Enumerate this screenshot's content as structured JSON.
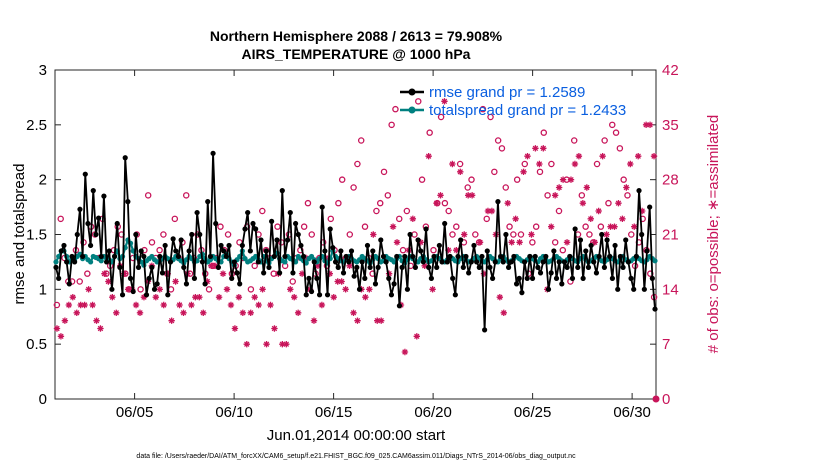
{
  "chart_data": {
    "type": "line",
    "title_line1": "Northern Hemisphere 2088 / 2613 = 79.908%",
    "title_line2": "AIRS_TEMPERATURE @ 1000 hPa",
    "ylabel_left": "rmse and totalspread",
    "ylabel_right": "# of obs: o=possible; ∗=assimilated",
    "xlabel": "Jun.01,2014 00:00:00 start",
    "footer": "data file: /Users/raeder/DAI/ATM_forcXX/CAM6_setup/f.e21.FHIST_BGC.f09_025.CAM6assim.011/Diags_NTrS_2014-06/obs_diag_output.nc",
    "xlim": [
      1,
      31.2
    ],
    "ylim_left": [
      0,
      3
    ],
    "ylim_right": [
      0,
      42
    ],
    "yticks_left": [
      "0",
      "0.5",
      "1",
      "1.5",
      "2",
      "2.5",
      "3"
    ],
    "yticks_right": [
      "0",
      "7",
      "14",
      "21",
      "28",
      "35",
      "42"
    ],
    "xticks": [
      {
        "label": "06/05",
        "day": 5
      },
      {
        "label": "06/10",
        "day": 10
      },
      {
        "label": "06/15",
        "day": 15
      },
      {
        "label": "06/20",
        "day": 20
      },
      {
        "label": "06/25",
        "day": 25
      },
      {
        "label": "06/30",
        "day": 30
      }
    ],
    "series": [
      {
        "name": "rmse grand pr = 1.2589",
        "axis": "left",
        "color": "#000000",
        "y": [
          1.2,
          1.1,
          1.35,
          1.4,
          1.25,
          1.05,
          1.3,
          1.25,
          1.5,
          1.73,
          1.3,
          2.05,
          1.6,
          1.4,
          1.9,
          1.5,
          1.65,
          1.3,
          1.85,
          1.25,
          1.35,
          1.0,
          1.3,
          1.6,
          1.2,
          0.95,
          2.2,
          1.8,
          1.1,
          0.98,
          1.5,
          1.2,
          1.35,
          1.3,
          0.95,
          1.1,
          1.2,
          1.0,
          1.05,
          1.3,
          1.15,
          1.4,
          0.95,
          1.25,
          1.46,
          1.35,
          1.3,
          1.45,
          1.2,
          1.05,
          1.35,
          1.5,
          1.1,
          1.7,
          1.5,
          1.25,
          1.05,
          1.8,
          1.3,
          2.24,
          1.6,
          1.2,
          1.4,
          1.35,
          1.3,
          1.4,
          1.1,
          1.25,
          1.15,
          1.05,
          1.4,
          1.55,
          1.7,
          1.35,
          1.6,
          1.55,
          1.25,
          1.45,
          1.15,
          1.35,
          1.2,
          1.62,
          1.3,
          1.45,
          1.15,
          1.9,
          1.3,
          1.45,
          1.7,
          1.15,
          1.6,
          1.5,
          1.4,
          1.3,
          0.95,
          1.1,
          0.98,
          1.25,
          1.1,
          0.95,
          1.75,
          1.35,
          0.95,
          1.55,
          1.38,
          1.25,
          1.2,
          1.35,
          1.15,
          1.3,
          1.25,
          1.35,
          1.12,
          1.2,
          1.0,
          1.25,
          1.1,
          1.4,
          1.2,
          1.35,
          1.05,
          1.2,
          1.45,
          1.3,
          1.25,
          1.1,
          0.95,
          1.05,
          1.3,
          0.85,
          1.2,
          1.3,
          1.0,
          1.5,
          1.3,
          1.2,
          1.45,
          1.35,
          1.25,
          1.55,
          1.2,
          1.1,
          1.3,
          1.2,
          1.4,
          1.25,
          1.6,
          1.25,
          1.3,
          1.1,
          0.95,
          1.3,
          1.45,
          1.2,
          1.3,
          1.15,
          1.25,
          1.4,
          1.25,
          1.2,
          1.3,
          0.63,
          1.35,
          1.2,
          1.1,
          1.25,
          1.8,
          1.3,
          1.25,
          1.5,
          1.2,
          1.25,
          1.3,
          1.05,
          1.1,
          0.97,
          1.25,
          1.1,
          1.3,
          1.1,
          1.3,
          1.2,
          1.15,
          1.25,
          1.3,
          1.0,
          1.15,
          1.35,
          1.1,
          1.25,
          1.05,
          1.25,
          1.2,
          1.3,
          1.1,
          1.55,
          1.2,
          1.45,
          1.1,
          1.35,
          1.2,
          1.4,
          1.25,
          1.15,
          1.3,
          1.5,
          1.2,
          1.45,
          1.3,
          1.1,
          1.4,
          1.0,
          1.3,
          1.2,
          1.45,
          1.25,
          1.1,
          1.0,
          1.3,
          1.9,
          1.5,
          1.0,
          1.35,
          1.75,
          1.1,
          0.82
        ]
      },
      {
        "name": "totalspread grand pr = 1.2433",
        "axis": "left",
        "color": "#008080",
        "y": [
          1.25,
          1.3,
          1.35,
          1.35,
          1.3,
          1.25,
          1.28,
          1.27,
          1.3,
          1.32,
          1.28,
          1.3,
          1.27,
          1.25,
          1.3,
          1.29,
          1.28,
          1.26,
          1.3,
          1.28,
          1.27,
          1.25,
          1.3,
          1.35,
          1.28,
          1.3,
          1.38,
          1.45,
          1.42,
          1.35,
          1.3,
          1.28,
          1.25,
          1.22,
          1.26,
          1.28,
          1.3,
          1.27,
          1.25,
          1.26,
          1.28,
          1.3,
          1.28,
          1.25,
          1.27,
          1.3,
          1.28,
          1.26,
          1.24,
          1.27,
          1.3,
          1.28,
          1.25,
          1.26,
          1.3,
          1.32,
          1.28,
          1.25,
          1.27,
          1.3,
          1.28,
          1.26,
          1.25,
          1.3,
          1.32,
          1.28,
          1.25,
          1.22,
          1.27,
          1.3,
          1.35,
          1.28,
          1.25,
          1.26,
          1.28,
          1.3,
          1.27,
          1.25,
          1.3,
          1.26,
          1.24,
          1.28,
          1.3,
          1.33,
          1.28,
          1.26,
          1.25,
          1.3,
          1.28,
          1.27,
          1.25,
          1.3,
          1.28,
          1.26,
          1.24,
          1.28,
          1.3,
          1.27,
          1.25,
          1.28,
          1.3,
          1.26,
          1.24,
          1.28,
          1.35,
          1.3,
          1.28,
          1.26,
          1.25,
          1.27,
          1.3,
          1.28,
          1.26,
          1.25,
          1.27,
          1.3,
          1.28,
          1.26,
          1.24,
          1.27,
          1.3,
          1.28,
          1.25,
          1.26,
          1.3,
          1.28,
          1.27,
          1.25,
          1.28,
          1.3,
          1.26,
          1.24,
          1.27,
          1.3,
          1.28,
          1.26,
          1.25,
          1.28,
          1.3,
          1.27,
          1.25,
          1.26,
          1.28,
          1.3,
          1.28,
          1.26,
          1.25,
          1.27,
          1.3,
          1.28,
          1.26,
          1.25,
          1.28,
          1.3,
          1.27,
          1.25,
          1.26,
          1.28,
          1.3,
          1.28,
          1.26,
          1.25,
          1.27,
          1.3,
          1.28,
          1.26,
          1.25,
          1.28,
          1.3,
          1.27,
          1.25,
          1.26,
          1.28,
          1.3,
          1.28,
          1.26,
          1.25,
          1.27,
          1.3,
          1.28,
          1.26,
          1.25,
          1.28,
          1.3,
          1.27,
          1.25,
          1.26,
          1.28,
          1.3,
          1.28,
          1.26,
          1.25,
          1.27,
          1.3,
          1.28,
          1.26,
          1.25,
          1.28,
          1.3,
          1.27,
          1.25,
          1.26,
          1.28,
          1.3,
          1.28,
          1.26,
          1.25,
          1.27,
          1.3,
          1.28,
          1.26,
          1.25,
          1.28,
          1.3,
          1.27,
          1.25,
          1.26,
          1.28,
          1.3,
          1.28,
          1.26,
          1.25,
          1.27,
          1.3,
          1.28,
          1.26
        ]
      },
      {
        "name": "obs possible",
        "axis": "right",
        "color": "#c8155a",
        "marker": "o",
        "y": [
          12,
          23,
          18,
          15,
          15,
          19,
          15,
          20,
          16,
          22,
          21,
          18,
          23,
          16,
          17,
          19,
          22,
          21,
          16,
          14,
          18,
          21,
          14,
          19,
          26,
          20,
          18,
          19,
          21,
          16,
          14,
          23,
          18,
          20,
          26,
          16,
          18,
          21,
          19,
          16,
          14,
          17,
          18,
          22,
          19,
          21,
          16,
          17,
          20,
          18,
          22,
          14,
          17,
          21,
          24,
          19,
          18,
          16,
          22,
          20,
          17,
          21,
          15,
          18,
          19,
          22,
          25,
          21,
          16,
          18,
          20,
          17,
          23,
          19,
          25,
          28,
          18,
          21,
          27,
          30,
          33,
          22,
          18,
          16,
          24,
          25,
          29,
          26,
          35,
          37,
          23,
          19,
          24,
          17,
          21,
          38,
          28,
          22,
          34,
          19,
          25,
          36,
          25,
          24,
          21,
          22,
          30,
          20,
          27,
          28,
          21,
          20,
          37,
          23,
          36,
          29,
          33,
          32,
          27,
          22,
          21,
          28,
          21,
          30,
          16,
          20,
          22,
          29,
          34,
          26,
          30,
          20,
          24,
          19,
          28,
          15,
          33,
          21,
          26,
          22,
          21,
          20,
          30,
          22,
          33,
          25,
          35,
          34,
          32,
          28,
          26,
          21,
          17,
          20,
          23,
          19,
          16,
          13
        ]
      },
      {
        "name": "obs assimilated",
        "axis": "right",
        "color": "#c8155a",
        "marker": "*",
        "y": [
          9,
          8,
          10,
          12,
          13,
          11,
          12,
          12,
          14,
          12,
          10,
          9,
          16,
          15,
          13,
          11,
          17,
          16,
          14,
          14,
          12,
          11,
          13,
          15,
          17,
          13,
          14,
          12,
          16,
          10,
          15,
          12,
          11,
          16,
          12,
          13,
          13,
          11,
          15,
          17,
          17,
          13,
          16,
          14,
          12,
          9,
          13,
          11,
          7,
          11,
          13,
          12,
          14,
          7,
          12,
          9,
          16,
          7,
          7,
          14,
          13,
          11,
          16,
          18,
          14,
          10,
          17,
          12,
          18,
          16,
          13,
          15,
          15,
          14,
          17,
          11,
          10,
          14,
          13,
          14,
          21,
          10,
          10,
          18,
          16,
          22,
          20,
          12,
          6,
          19,
          23,
          8,
          20,
          17,
          31,
          14,
          25,
          26,
          38,
          19,
          30,
          19,
          29,
          21,
          26,
          26,
          18,
          20,
          16,
          24,
          24,
          21,
          13,
          11,
          25,
          20,
          23,
          20,
          29,
          31,
          21,
          32,
          30,
          32,
          14,
          22,
          26,
          27,
          28,
          20,
          28,
          30,
          31,
          25,
          27,
          23,
          20,
          24,
          31,
          21,
          22,
          22,
          25,
          23,
          27,
          30,
          22,
          31,
          24,
          35,
          35,
          31
        ]
      }
    ],
    "legend": {
      "location": "top-right",
      "entries": [
        "rmse grand pr = 1.2589",
        "totalspread grand pr = 1.2433"
      ]
    }
  },
  "colors": {
    "rmse": "#000000",
    "spread": "#008080",
    "obs": "#c8155a",
    "legend_text": "#0a5fe0"
  }
}
